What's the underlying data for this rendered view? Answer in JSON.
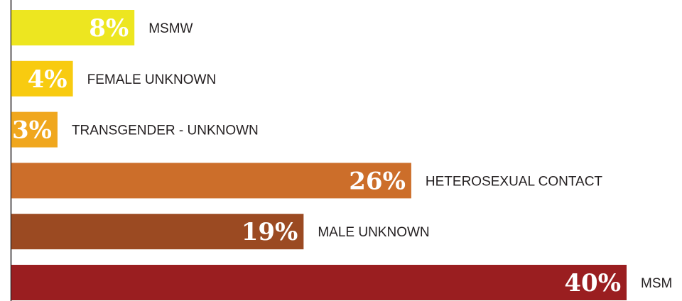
{
  "chart_data": {
    "type": "bar",
    "orientation": "horizontal",
    "title": "",
    "xlabel": "",
    "ylabel": "",
    "unit": "%",
    "xlim": [
      0,
      40
    ],
    "grid": false,
    "legend": "none",
    "categories": [
      "MSMW",
      "FEMALE UNKNOWN",
      "TRANSGENDER - UNKNOWN",
      "HETEROSEXUAL CONTACT",
      "MALE UNKNOWN",
      "MSM"
    ],
    "values": [
      8,
      4,
      3,
      26,
      19,
      40
    ],
    "labels": [
      "8%",
      "4%",
      "3%",
      "26%",
      "19%",
      "40%"
    ],
    "colors": [
      "#EDE620",
      "#F8CB10",
      "#F0A71E",
      "#CC6E2A",
      "#9B4A22",
      "#9A1E20"
    ],
    "axis_color": "#231f20"
  }
}
